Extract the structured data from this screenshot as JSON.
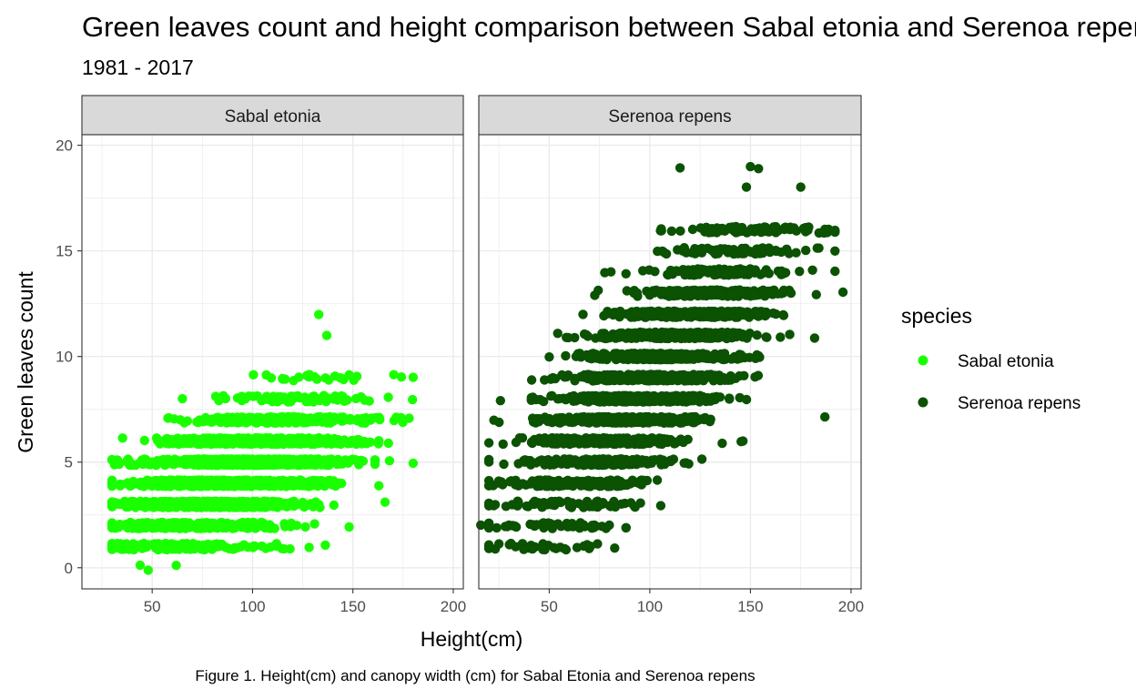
{
  "chart_data": {
    "type": "scatter",
    "title": "Green leaves count and height comparison between Sabal etonia and Serenoa repens",
    "subtitle": "1981 - 2017",
    "xlabel": "Height(cm)",
    "ylabel": "Green leaves count",
    "caption": "Figure 1. Height(cm) and canopy width (cm) for Sabal Etonia and Serenoa repens",
    "xlim": [
      15,
      205
    ],
    "ylim": [
      -1,
      20.5
    ],
    "xticks": [
      50,
      100,
      150,
      200
    ],
    "yticks": [
      0,
      5,
      10,
      15,
      20
    ],
    "grid": true,
    "legend": {
      "title": "species",
      "position": "right",
      "entries": [
        {
          "label": "Sabal etonia",
          "color": "#1aff00"
        },
        {
          "label": "Serenoa repens",
          "color": "#0b5203"
        }
      ]
    },
    "facets": [
      {
        "label": "Sabal etonia",
        "color": "#1aff00",
        "x_range": [
          30,
          180
        ],
        "y_range": [
          0,
          12
        ],
        "n_points": 3500,
        "notable_points": [
          {
            "x": 133,
            "y": 12
          },
          {
            "x": 137,
            "y": 11
          },
          {
            "x": 138,
            "y": 9
          },
          {
            "x": 152,
            "y": 9
          },
          {
            "x": 62,
            "y": 0
          },
          {
            "x": 44,
            "y": 0
          },
          {
            "x": 48,
            "y": 0
          },
          {
            "x": 180,
            "y": 5
          },
          {
            "x": 178,
            "y": 7
          },
          {
            "x": 166,
            "y": 3
          }
        ]
      },
      {
        "label": "Serenoa repens",
        "color": "#0b5203",
        "x_range": [
          15,
          196
        ],
        "y_range": [
          1,
          19
        ],
        "n_points": 3400,
        "notable_points": [
          {
            "x": 115,
            "y": 19
          },
          {
            "x": 154,
            "y": 19
          },
          {
            "x": 150,
            "y": 19
          },
          {
            "x": 175,
            "y": 18
          },
          {
            "x": 148,
            "y": 18
          },
          {
            "x": 16,
            "y": 2
          },
          {
            "x": 196,
            "y": 13
          },
          {
            "x": 187,
            "y": 16
          },
          {
            "x": 187,
            "y": 7
          },
          {
            "x": 74,
            "y": 1
          },
          {
            "x": 25,
            "y": 1
          }
        ]
      }
    ]
  }
}
